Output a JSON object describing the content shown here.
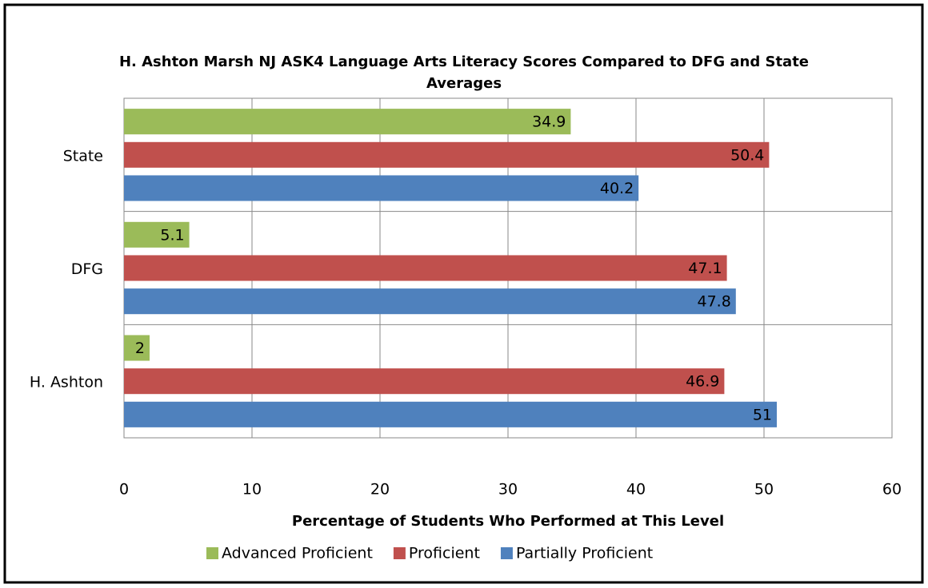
{
  "chart_data": {
    "type": "bar",
    "orientation": "horizontal",
    "title": "H. Ashton Marsh NJ ASK4 Language Arts Literacy Scores Compared to DFG and State Averages",
    "xlabel": "Percentage of Students Who Performed at This Level",
    "categories": [
      "State",
      "DFG",
      "H. Ashton"
    ],
    "series": [
      {
        "name": "Advanced Proficient",
        "color": "#9bbb59",
        "values": [
          34.9,
          5.1,
          2
        ]
      },
      {
        "name": "Proficient",
        "color": "#c0504d",
        "values": [
          50.4,
          47.1,
          46.9
        ]
      },
      {
        "name": "Partially Proficient",
        "color": "#4f81bd",
        "values": [
          40.2,
          47.8,
          51
        ]
      }
    ],
    "xlim": [
      0,
      60
    ],
    "xticks": [
      0,
      10,
      20,
      30,
      40,
      50,
      60
    ],
    "grid": true,
    "legend": "bottom"
  }
}
